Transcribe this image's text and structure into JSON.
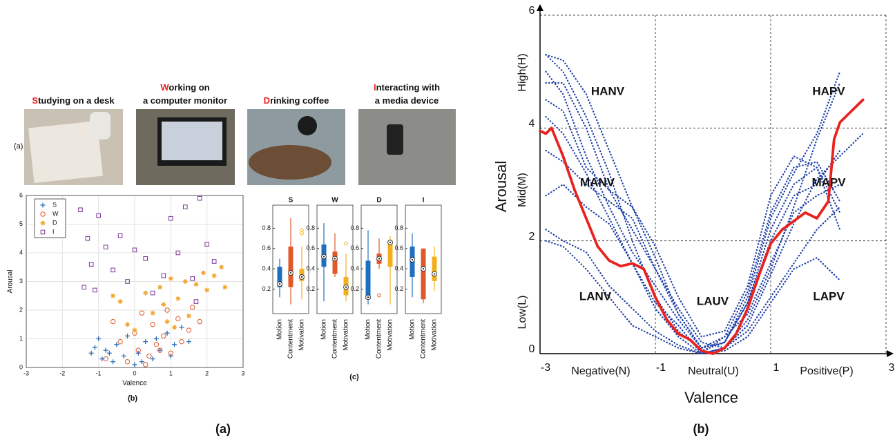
{
  "photo_captions": [
    {
      "initial": "S",
      "lines": [
        "tudying on a desk"
      ]
    },
    {
      "initial": "W",
      "lines": [
        "orking on",
        "a computer monitor"
      ]
    },
    {
      "initial": "D",
      "lines": [
        "rinking coffee"
      ]
    },
    {
      "initial": "I",
      "lines": [
        "nteracting with",
        "a media device"
      ]
    }
  ],
  "row_label": "(a)",
  "scatter_label": "(b)",
  "box_label": "(c)",
  "figure_labels": [
    "(a)",
    "(b)"
  ],
  "chart_data": [
    {
      "type": "scatter",
      "xlabel": "Valence",
      "ylabel": "Arousal",
      "xlim": [
        -3,
        3
      ],
      "ylim": [
        0,
        6
      ],
      "xticks": [
        -3,
        -2,
        -1,
        0,
        1,
        2,
        3
      ],
      "yticks": [
        0,
        1,
        2,
        3,
        4,
        5,
        6
      ],
      "grid": true,
      "legend": "upper left",
      "series": [
        {
          "name": "S",
          "color": "#2b6cb8",
          "marker": "plus",
          "x": [
            -1.2,
            -1.1,
            -1.0,
            -0.9,
            -0.8,
            -0.6,
            -0.5,
            -0.3,
            -0.2,
            0.0,
            0.1,
            0.3,
            0.5,
            0.7,
            0.9,
            1.1,
            1.3,
            1.5,
            -0.7,
            0.2,
            0.6,
            1.0
          ],
          "y": [
            0.5,
            0.7,
            1.0,
            0.3,
            0.6,
            0.2,
            0.8,
            0.4,
            1.1,
            0.1,
            0.5,
            0.9,
            0.3,
            0.6,
            1.2,
            0.8,
            1.4,
            0.9,
            0.5,
            0.2,
            1.0,
            0.4
          ]
        },
        {
          "name": "W",
          "color": "#e0592a",
          "marker": "circle",
          "x": [
            -0.8,
            -0.6,
            -0.4,
            -0.2,
            0,
            0.1,
            0.2,
            0.4,
            0.5,
            0.6,
            0.8,
            0.9,
            1.0,
            1.2,
            1.3,
            1.5,
            1.6,
            1.8,
            0.3,
            0.7
          ],
          "y": [
            0.3,
            1.6,
            0.9,
            0.2,
            1.2,
            0.6,
            1.9,
            0.4,
            1.5,
            0.8,
            1.1,
            2.0,
            0.5,
            1.7,
            0.9,
            1.3,
            2.1,
            1.6,
            0.1,
            0.6
          ]
        },
        {
          "name": "D",
          "color": "#f2a52a",
          "marker": "star",
          "x": [
            -0.6,
            -0.4,
            -0.2,
            0,
            0.3,
            0.5,
            0.7,
            0.9,
            1.0,
            1.2,
            1.4,
            1.5,
            1.7,
            1.9,
            2.0,
            2.2,
            2.4,
            2.5,
            0.8,
            1.1
          ],
          "y": [
            2.5,
            2.3,
            1.5,
            1.3,
            2.6,
            1.9,
            2.8,
            1.6,
            3.1,
            2.4,
            3.0,
            1.8,
            2.9,
            3.3,
            2.7,
            3.2,
            3.5,
            2.8,
            2.2,
            1.4
          ]
        },
        {
          "name": "I",
          "color": "#7b3294",
          "marker": "square",
          "x": [
            -1.5,
            -1.4,
            -1.3,
            -1.2,
            -1.0,
            -0.8,
            -0.6,
            -0.4,
            -0.2,
            0,
            0.3,
            0.5,
            0.8,
            1.0,
            1.2,
            1.4,
            1.6,
            1.8,
            2.0,
            2.2,
            -1.1,
            1.7
          ],
          "y": [
            5.5,
            2.8,
            4.5,
            3.6,
            5.3,
            4.2,
            3.4,
            4.6,
            3.0,
            4.1,
            3.8,
            2.6,
            3.2,
            5.2,
            4.0,
            5.6,
            3.1,
            5.9,
            4.3,
            3.7,
            2.7,
            2.3
          ]
        }
      ]
    },
    {
      "type": "box",
      "title": "S",
      "categories": [
        "Motion",
        "Contentment",
        "Motivation"
      ],
      "ylim": [
        0,
        1
      ],
      "yticks": [
        0.2,
        0.4,
        0.6,
        0.8
      ],
      "boxes": [
        {
          "color": "#1f6fbf",
          "whisker_low": 0.12,
          "q1": 0.22,
          "median": 0.25,
          "q3": 0.42,
          "whisker_high": 0.5,
          "outliers": []
        },
        {
          "color": "#e0592a",
          "whisker_low": 0.05,
          "q1": 0.22,
          "median": 0.36,
          "q3": 0.62,
          "whisker_high": 0.9,
          "outliers": []
        },
        {
          "color": "#f2b01e",
          "whisker_low": 0.1,
          "q1": 0.28,
          "median": 0.32,
          "q3": 0.4,
          "whisker_high": 0.62,
          "outliers": [
            0.75,
            0.78
          ]
        }
      ]
    },
    {
      "type": "box",
      "title": "W",
      "categories": [
        "Motion",
        "Contentment",
        "Motivation"
      ],
      "ylim": [
        0,
        1
      ],
      "yticks": [
        0.2,
        0.4,
        0.6,
        0.8
      ],
      "boxes": [
        {
          "color": "#1f6fbf",
          "whisker_low": 0.08,
          "q1": 0.42,
          "median": 0.52,
          "q3": 0.64,
          "whisker_high": 0.85,
          "outliers": []
        },
        {
          "color": "#e0592a",
          "whisker_low": 0.32,
          "q1": 0.35,
          "median": 0.5,
          "q3": 0.57,
          "whisker_high": 0.75,
          "outliers": []
        },
        {
          "color": "#f2b01e",
          "whisker_low": 0.08,
          "q1": 0.14,
          "median": 0.22,
          "q3": 0.32,
          "whisker_high": 0.55,
          "outliers": [
            0.65
          ]
        }
      ]
    },
    {
      "type": "box",
      "title": "D",
      "categories": [
        "Motion",
        "Contentment",
        "Motivation"
      ],
      "ylim": [
        0,
        1
      ],
      "yticks": [
        0.2,
        0.4,
        0.6,
        0.8
      ],
      "boxes": [
        {
          "color": "#1f6fbf",
          "whisker_low": 0.05,
          "q1": 0.1,
          "median": 0.12,
          "q3": 0.48,
          "whisker_high": 0.78,
          "outliers": []
        },
        {
          "color": "#e0592a",
          "whisker_low": 0.4,
          "q1": 0.45,
          "median": 0.5,
          "q3": 0.55,
          "whisker_high": 0.7,
          "outliers": [
            0.14
          ]
        },
        {
          "color": "#f2b01e",
          "whisker_low": 0.05,
          "q1": 0.42,
          "median": 0.66,
          "q3": 0.68,
          "whisker_high": 0.72,
          "outliers": []
        }
      ]
    },
    {
      "type": "box",
      "title": "I",
      "categories": [
        "Motion",
        "Contentment",
        "Motivation"
      ],
      "ylim": [
        0,
        1
      ],
      "yticks": [
        0.2,
        0.4,
        0.6,
        0.8
      ],
      "boxes": [
        {
          "color": "#1f6fbf",
          "whisker_low": 0.12,
          "q1": 0.32,
          "median": 0.49,
          "q3": 0.62,
          "whisker_high": 0.75,
          "outliers": []
        },
        {
          "color": "#e0592a",
          "whisker_low": 0.06,
          "q1": 0.1,
          "median": 0.4,
          "q3": 0.6,
          "whisker_high": 0.6,
          "outliers": []
        },
        {
          "color": "#f2b01e",
          "whisker_low": 0.18,
          "q1": 0.28,
          "median": 0.35,
          "q3": 0.52,
          "whisker_high": 0.62,
          "outliers": []
        }
      ]
    },
    {
      "type": "line",
      "xlabel": "Valence",
      "ylabel": "Arousal",
      "xlim": [
        -3,
        3
      ],
      "ylim": [
        0,
        6
      ],
      "xticks": [
        -3,
        -1,
        1,
        3
      ],
      "yticks": [
        0,
        2,
        4,
        6
      ],
      "grid": true,
      "x_category_labels": [
        "Negative(N)",
        "Neutral(U)",
        "Positive(P)"
      ],
      "y_category_labels": [
        "Low(L)",
        "Mid(M)",
        "High(H)"
      ],
      "annotations": [
        "HANV",
        "HAPV",
        "MANV",
        "MAPV",
        "LANV",
        "LAUV",
        "LAPV"
      ],
      "series": [
        {
          "color": "#1f3fa8",
          "style": "dotted",
          "x": [
            -2.9,
            -2.6,
            -2.2,
            -1.8,
            -1.4,
            -1.0,
            -0.6,
            -0.2,
            0.2,
            0.6,
            1.0,
            1.4,
            1.8,
            2.2
          ],
          "values": [
            5.3,
            5.0,
            4.2,
            3.2,
            2.0,
            1.0,
            0.4,
            0.05,
            0.2,
            0.9,
            2.2,
            3.0,
            3.3,
            2.5
          ]
        },
        {
          "color": "#1f3fa8",
          "style": "dotted",
          "x": [
            -2.9,
            -2.6,
            -2.2,
            -1.8,
            -1.4,
            -1.0,
            -0.6,
            -0.2,
            0.2,
            0.6,
            1.0,
            1.4,
            1.8,
            2.2
          ],
          "values": [
            5.0,
            4.6,
            3.5,
            2.6,
            1.8,
            1.2,
            0.6,
            0.1,
            0.3,
            1.1,
            2.5,
            3.3,
            3.4,
            2.7
          ]
        },
        {
          "color": "#1f3fa8",
          "style": "dotted",
          "x": [
            -2.9,
            -2.6,
            -2.2,
            -1.8,
            -1.4,
            -1.0,
            -0.6,
            -0.2,
            0.2,
            0.6,
            1.0,
            1.4,
            1.8,
            2.2
          ],
          "values": [
            4.8,
            4.8,
            4.0,
            2.9,
            2.2,
            1.5,
            0.8,
            0.2,
            0.1,
            0.6,
            1.5,
            2.6,
            3.8,
            4.8
          ]
        },
        {
          "color": "#1f3fa8",
          "style": "dotted",
          "x": [
            -2.9,
            -2.6,
            -2.2,
            -1.8,
            -1.4,
            -1.0,
            -0.6,
            -0.2,
            0.2,
            0.6,
            1.0,
            1.4,
            1.8,
            2.2
          ],
          "values": [
            4.5,
            4.3,
            3.3,
            2.9,
            2.6,
            1.9,
            1.0,
            0.3,
            0.4,
            1.2,
            2.8,
            3.5,
            3.3,
            2.2
          ]
        },
        {
          "color": "#1f3fa8",
          "style": "dotted",
          "x": [
            -2.9,
            -2.6,
            -2.2,
            -1.8,
            -1.4,
            -1.0,
            -0.6,
            -0.2,
            0.2,
            0.6,
            1.0,
            1.4,
            1.8,
            2.2
          ],
          "values": [
            3.6,
            3.4,
            3.0,
            2.7,
            2.4,
            1.5,
            0.7,
            0.1,
            0.2,
            0.9,
            2.0,
            2.8,
            3.0,
            3.6
          ]
        },
        {
          "color": "#1f3fa8",
          "style": "dotted",
          "x": [
            -2.9,
            -2.6,
            -2.2,
            -1.8,
            -1.4,
            -1.0,
            -0.6,
            -0.2,
            0.2,
            0.6,
            1.0,
            1.4,
            1.8,
            2.2
          ],
          "values": [
            2.8,
            3.0,
            2.6,
            2.3,
            1.6,
            0.9,
            0.5,
            0.0,
            0.3,
            0.7,
            1.6,
            2.5,
            2.8,
            3.0
          ]
        },
        {
          "color": "#1f3fa8",
          "style": "dotted",
          "x": [
            -2.9,
            -2.6,
            -2.2,
            -1.8,
            -1.4,
            -1.0,
            -0.6,
            -0.2,
            0.2,
            0.6,
            1.0,
            1.4,
            1.8,
            2.2
          ],
          "values": [
            2.2,
            2.0,
            1.8,
            1.2,
            0.8,
            0.4,
            0.15,
            0.0,
            0.05,
            0.3,
            0.9,
            1.5,
            1.7,
            1.3
          ]
        },
        {
          "color": "#1f3fa8",
          "style": "dotted",
          "x": [
            -2.9,
            -2.6,
            -2.2,
            -1.8,
            -1.4,
            -1.0,
            -0.6,
            -0.2,
            0.2,
            0.6,
            1.0,
            1.4,
            1.8,
            2.2
          ],
          "values": [
            2.0,
            1.9,
            1.5,
            1.0,
            0.5,
            0.3,
            0.1,
            0.0,
            0.1,
            0.4,
            1.0,
            1.6,
            2.2,
            2.6
          ]
        },
        {
          "color": "#1f3fa8",
          "style": "dotted",
          "x": [
            -2.9,
            -2.6,
            -2.2,
            -1.8,
            -1.4,
            -1.0,
            -0.6,
            -0.2,
            0.2,
            0.6,
            1.0,
            1.4,
            1.8,
            2.2
          ],
          "values": [
            5.3,
            5.2,
            4.6,
            3.6,
            2.6,
            1.7,
            0.7,
            0.1,
            0.2,
            1.0,
            2.4,
            3.2,
            3.9,
            5.0
          ]
        },
        {
          "color": "#1f3fa8",
          "style": "dotted",
          "x": [
            -2.9,
            -2.6,
            -2.2,
            -1.8,
            -1.4,
            -1.0,
            -0.6,
            -0.2,
            0.2,
            0.6,
            1.0,
            1.4,
            1.8,
            2.6
          ],
          "values": [
            4.2,
            3.9,
            3.2,
            2.4,
            1.6,
            0.8,
            0.3,
            0.0,
            0.1,
            0.5,
            1.4,
            2.3,
            3.1,
            3.9
          ]
        },
        {
          "color": "#e8231f",
          "style": "solid",
          "x": [
            -3,
            -2.9,
            -2.8,
            -2.6,
            -2.4,
            -2.2,
            -2.0,
            -1.8,
            -1.6,
            -1.4,
            -1.2,
            -1.0,
            -0.8,
            -0.6,
            -0.4,
            -0.2,
            0,
            0.2,
            0.4,
            0.6,
            0.8,
            1.0,
            1.2,
            1.4,
            1.6,
            1.8,
            2.0,
            2.1,
            2.2,
            2.4,
            2.6
          ],
          "values": [
            3.95,
            3.9,
            4.0,
            3.5,
            2.9,
            2.4,
            1.9,
            1.65,
            1.55,
            1.6,
            1.5,
            1.0,
            0.6,
            0.35,
            0.25,
            0.05,
            0,
            0.1,
            0.35,
            0.8,
            1.4,
            1.95,
            2.2,
            2.35,
            2.5,
            2.4,
            2.7,
            3.8,
            4.1,
            4.3,
            4.5
          ]
        }
      ]
    }
  ]
}
